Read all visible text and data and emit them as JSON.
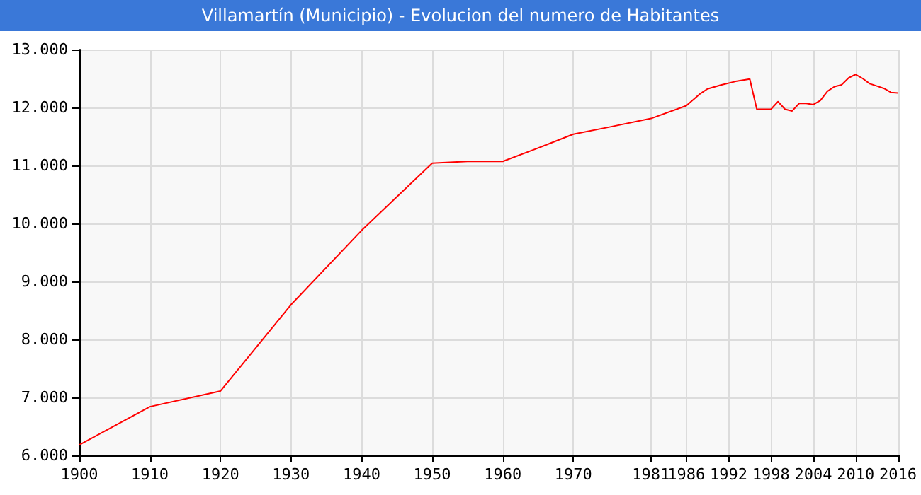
{
  "chart_data": {
    "type": "line",
    "title": "Villamartín (Municipio) - Evolucion del numero de Habitantes",
    "series": [
      {
        "color": "#ff0000",
        "x": [
          1900,
          1910,
          1920,
          1930,
          1940,
          1950,
          1955,
          1960,
          1965,
          1970,
          1975,
          1981,
          1986,
          1988,
          1989,
          1991,
          1993,
          1995,
          1996,
          1998,
          1999,
          2000,
          2001,
          2002,
          2003,
          2004,
          2005,
          2006,
          2007,
          2008,
          2009,
          2010,
          2011,
          2012,
          2013,
          2014,
          2015,
          2016
        ],
        "values": [
          6180,
          6840,
          7110,
          8600,
          9880,
          11040,
          11070,
          11070,
          11300,
          11540,
          11660,
          11810,
          12030,
          12240,
          12320,
          12390,
          12450,
          12490,
          11970,
          11970,
          12100,
          11970,
          11940,
          12070,
          12070,
          12050,
          12120,
          12280,
          12360,
          12390,
          12510,
          12570,
          12500,
          12410,
          12370,
          12330,
          12260,
          12250
        ]
      }
    ],
    "xlim": [
      1900,
      2016
    ],
    "xticks": [
      1900,
      1910,
      1920,
      1930,
      1940,
      1950,
      1960,
      1970,
      1981,
      1986,
      1992,
      1998,
      2004,
      2010,
      2016
    ],
    "ylim": [
      6000,
      13000
    ],
    "yticks": [
      {
        "value": 6000,
        "label": "6.000"
      },
      {
        "value": 7000,
        "label": "7.000"
      },
      {
        "value": 8000,
        "label": "8.000"
      },
      {
        "value": 9000,
        "label": "9.000"
      },
      {
        "value": 10000,
        "label": "10.000"
      },
      {
        "value": 11000,
        "label": "11.000"
      },
      {
        "value": 12000,
        "label": "12.000"
      },
      {
        "value": 13000,
        "label": "13.000"
      }
    ],
    "grid": true,
    "marker": "none",
    "line_style": "solid"
  }
}
